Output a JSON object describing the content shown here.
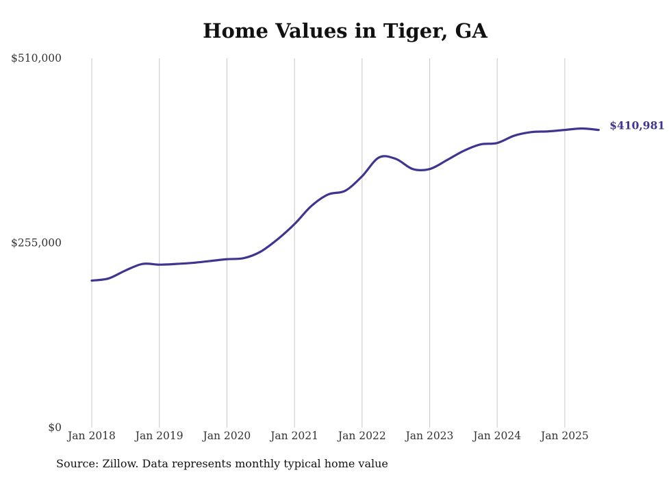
{
  "chart_data": {
    "type": "line",
    "title": "Home Values in Tiger, GA",
    "xlabel": "",
    "ylabel": "",
    "ylim": [
      0,
      510000
    ],
    "y_ticks": [
      {
        "value": 0,
        "label": "$0"
      },
      {
        "value": 255000,
        "label": "$255,000"
      },
      {
        "value": 510000,
        "label": "$510,000"
      }
    ],
    "x_ticks": [
      {
        "value": "2018-01",
        "label": "Jan 2018"
      },
      {
        "value": "2019-01",
        "label": "Jan 2019"
      },
      {
        "value": "2020-01",
        "label": "Jan 2020"
      },
      {
        "value": "2021-01",
        "label": "Jan 2021"
      },
      {
        "value": "2022-01",
        "label": "Jan 2022"
      },
      {
        "value": "2023-01",
        "label": "Jan 2023"
      },
      {
        "value": "2024-01",
        "label": "Jan 2024"
      },
      {
        "value": "2025-01",
        "label": "Jan 2025"
      }
    ],
    "grid": {
      "vertical": true,
      "horizontal": false
    },
    "series": [
      {
        "color": "#3d3590",
        "x": [
          "2018-01",
          "2018-04",
          "2018-07",
          "2018-10",
          "2019-01",
          "2019-04",
          "2019-07",
          "2019-10",
          "2020-01",
          "2020-04",
          "2020-07",
          "2020-10",
          "2021-01",
          "2021-04",
          "2021-07",
          "2021-10",
          "2022-01",
          "2022-04",
          "2022-07",
          "2022-10",
          "2023-01",
          "2023-04",
          "2023-07",
          "2023-10",
          "2024-01",
          "2024-04",
          "2024-07",
          "2024-10",
          "2025-01",
          "2025-04",
          "2025-07"
        ],
        "values": [
          203000,
          206000,
          217000,
          226000,
          225000,
          226000,
          227500,
          230000,
          232500,
          234000,
          243000,
          260000,
          281000,
          306000,
          322000,
          327000,
          347000,
          373000,
          371000,
          357000,
          357000,
          369000,
          382000,
          391000,
          393000,
          403000,
          408000,
          409000,
          411000,
          413000,
          410981
        ]
      }
    ],
    "end_label": "$410,981"
  },
  "footer": {
    "source": "Source: Zillow. Data represents monthly typical home value"
  }
}
